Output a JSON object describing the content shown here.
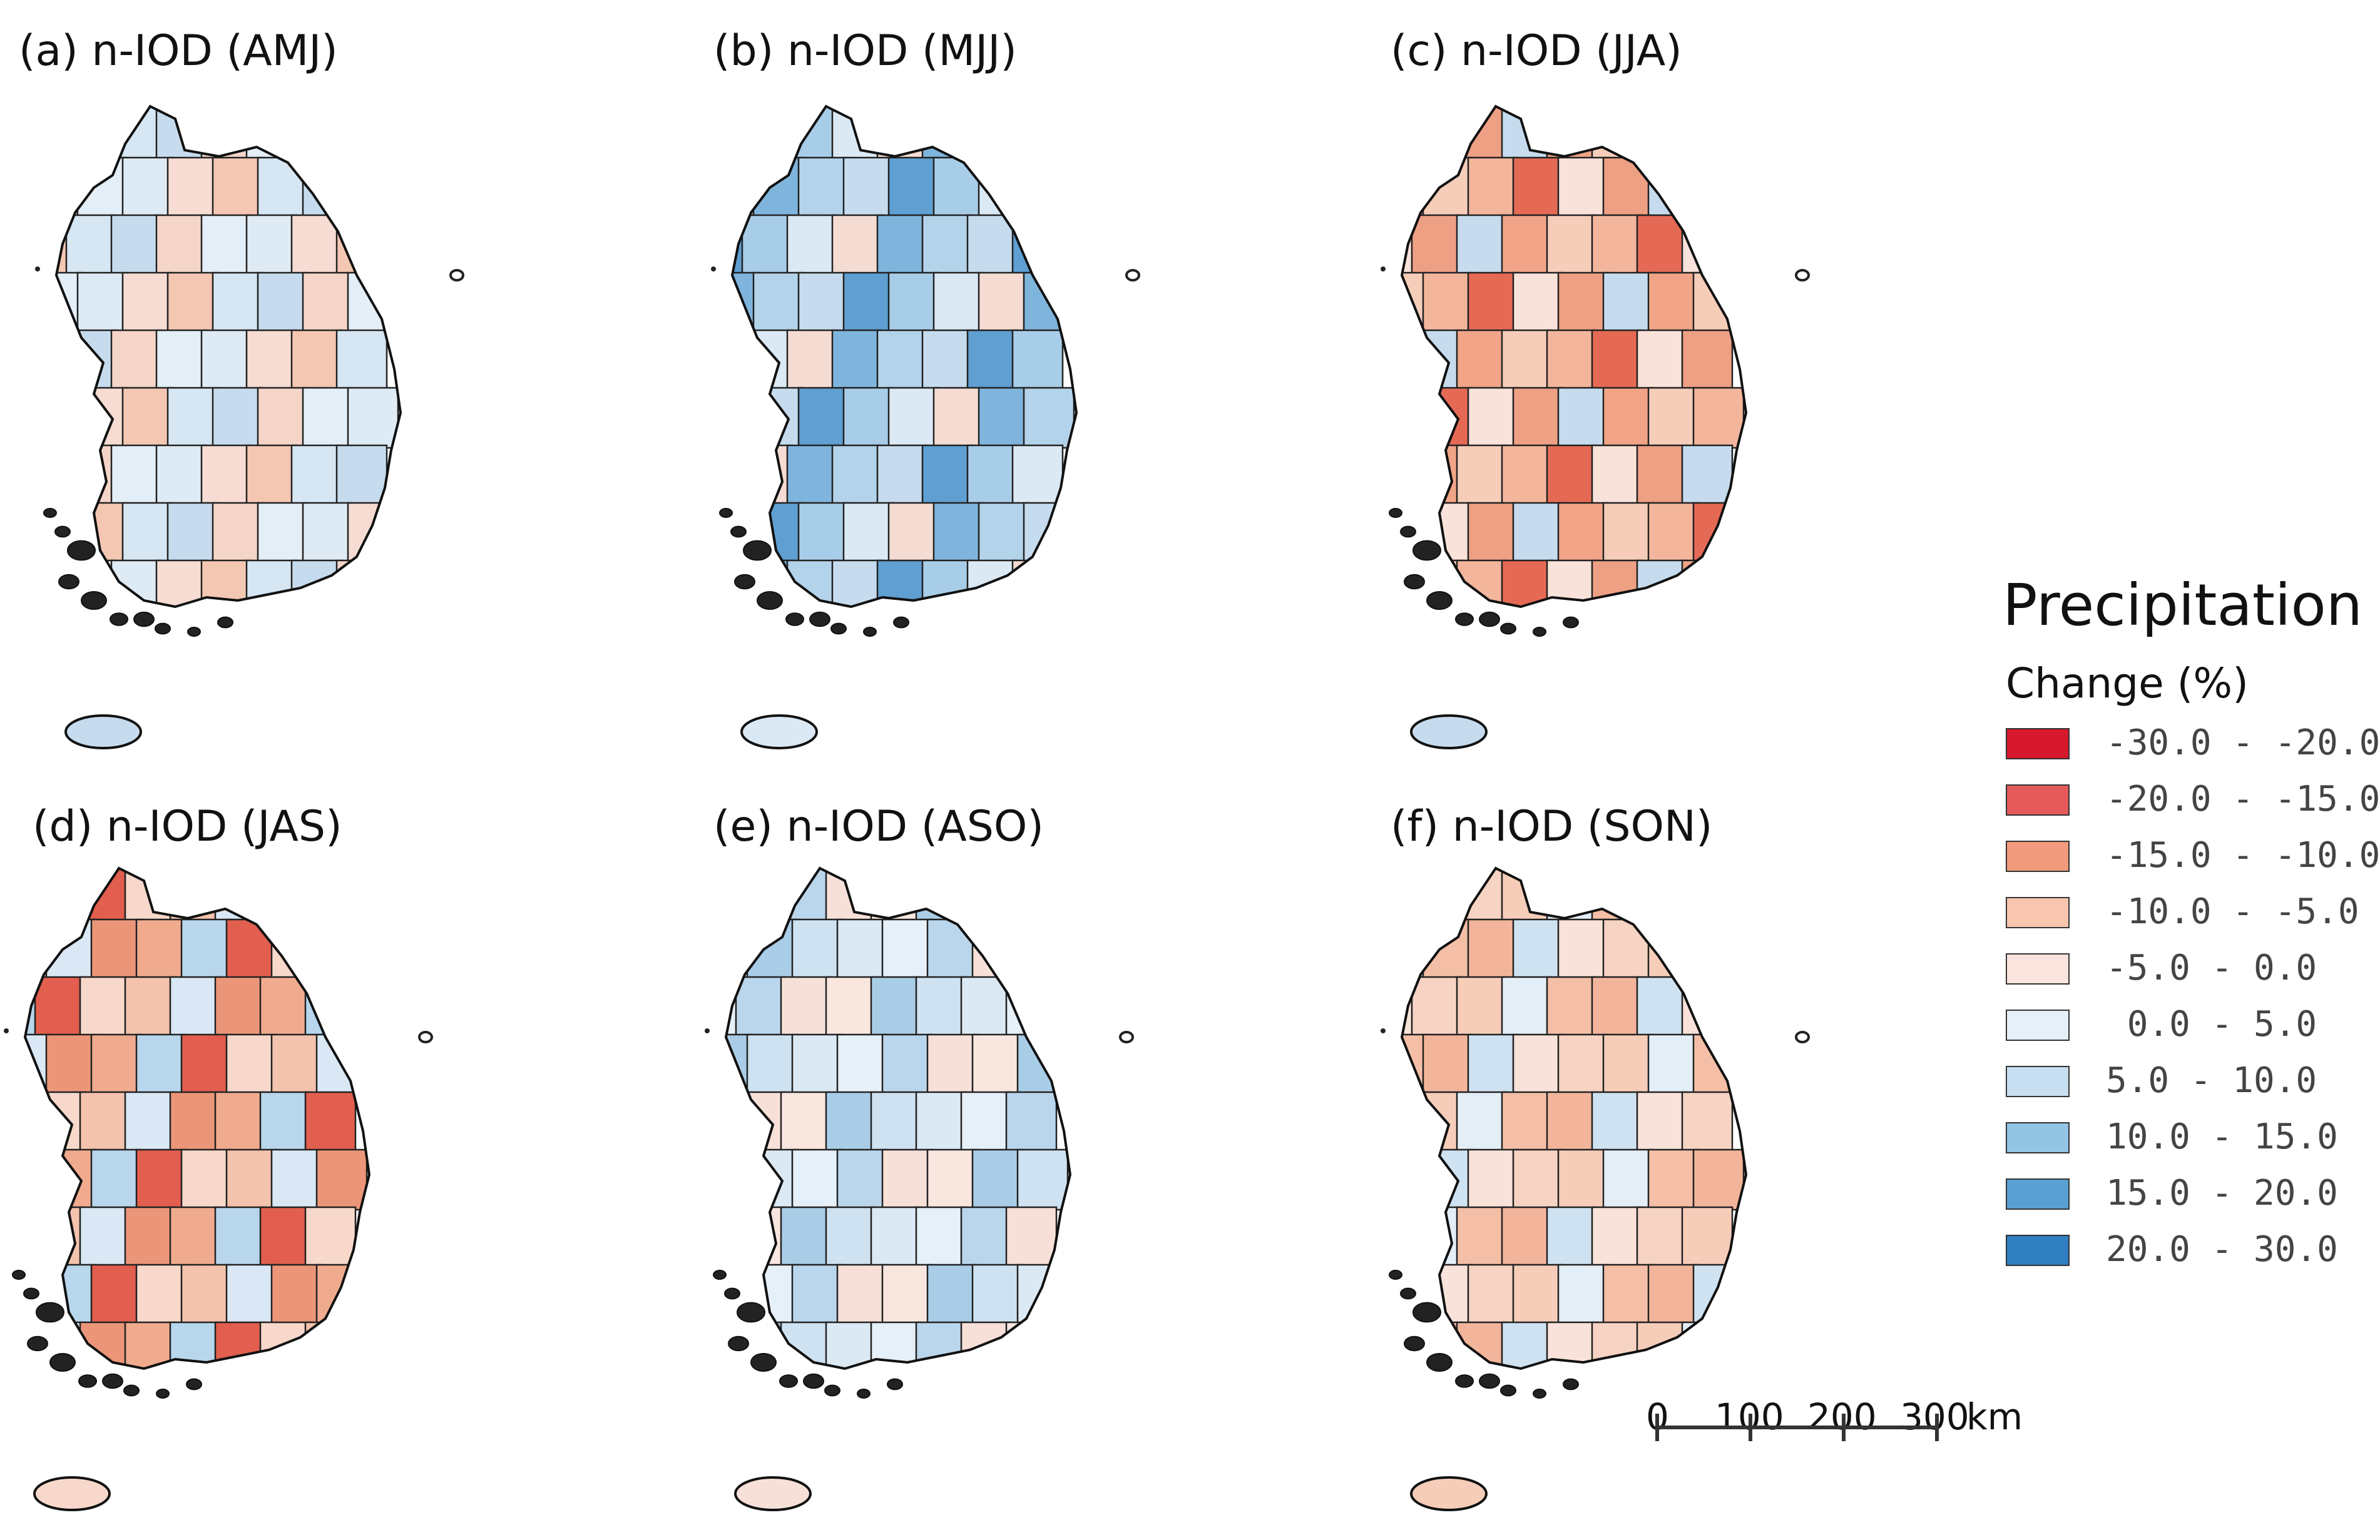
{
  "panels": [
    {
      "title": "(a) n-IOD (AMJ)",
      "scheme": [
        "#f6dcd2",
        "#e3eef7",
        "#c6dcee",
        "#f4c7b2",
        "#deebf5",
        "#f5d5c8",
        "#d6e6f3"
      ]
    },
    {
      "title": "(b) n-IOD (MJJ)",
      "scheme": [
        "#a8cde8",
        "#c6dcee",
        "#7fb5dd",
        "#dbe9f4",
        "#5f9fd1",
        "#b3d3ea",
        "#f4dcd3"
      ]
    },
    {
      "title": "(c) n-IOD (JJA)",
      "scheme": [
        "#f1a487",
        "#eea084",
        "#e56a55",
        "#f6cdb9",
        "#c6dcee",
        "#f9e2d9",
        "#f3b69c"
      ]
    },
    {
      "title": "(d) n-IOD (JAS)",
      "scheme": [
        "#ec9679",
        "#f4c3ad",
        "#e25e4e",
        "#f0ab8f",
        "#d9e8f4",
        "#f7d8ca",
        "#b8d6ec"
      ]
    },
    {
      "title": "(e) n-IOD (ASO)",
      "scheme": [
        "#e6f0f8",
        "#cfe2f1",
        "#f9e6df",
        "#bad6ec",
        "#dbe9f4",
        "#a9cde7",
        "#f6e0d8"
      ]
    },
    {
      "title": "(f) n-IOD (SON)",
      "scheme": [
        "#f6cdb9",
        "#f9e2d9",
        "#f2b59b",
        "#e3eef7",
        "#f7d3c3",
        "#cfe2f1",
        "#f4bfa6"
      ]
    }
  ],
  "legend": {
    "title": "Precipitation",
    "subtitle": "Change (%)",
    "items": [
      {
        "label": "-30.0 - -20.0",
        "color": "#d6182d"
      },
      {
        "label": "-20.0 - -15.0",
        "color": "#e55a5a"
      },
      {
        "label": "-15.0 - -10.0",
        "color": "#f29b7c"
      },
      {
        "label": "-10.0 - -5.0",
        "color": "#f8c6ae"
      },
      {
        "label": "-5.0 - 0.0",
        "color": "#f9e5dd"
      },
      {
        "label": " 0.0 - 5.0",
        "color": "#e6f0f8"
      },
      {
        "label": "5.0 - 10.0",
        "color": "#c7dff0"
      },
      {
        "label": "10.0 - 15.0",
        "color": "#93c4e4"
      },
      {
        "label": "15.0 - 20.0",
        "color": "#5aa1d3"
      },
      {
        "label": "20.0 - 30.0",
        "color": "#2f7fc1"
      }
    ]
  },
  "scalebar": {
    "ticks": [
      "0",
      "100",
      "200",
      "300"
    ],
    "unit": "km"
  }
}
